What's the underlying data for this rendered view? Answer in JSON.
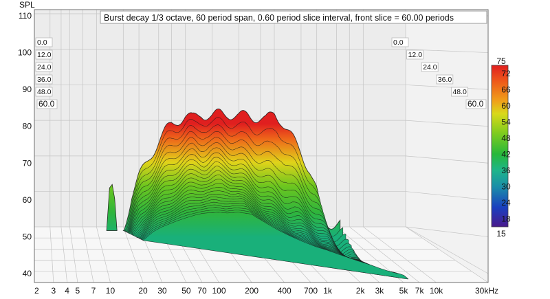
{
  "chart_data": {
    "type": "area",
    "title": "Burst decay 1/3 octave, 60 period span, 0.60 period slice interval,  front slice = 60.00 periods",
    "ylabel": "SPL",
    "ylim": [
      36,
      111
    ],
    "y_ticks": [
      "110",
      "100",
      "90",
      "80",
      "70",
      "60",
      "50",
      "40"
    ],
    "x_scale": "log",
    "xlim": [
      2,
      30000
    ],
    "x_ticks": [
      {
        "v": 2,
        "label": "2"
      },
      {
        "v": 3,
        "label": "3"
      },
      {
        "v": 4,
        "label": "4"
      },
      {
        "v": 5,
        "label": "5"
      },
      {
        "v": 7,
        "label": "7"
      },
      {
        "v": 10,
        "label": "10"
      },
      {
        "v": 20,
        "label": "20"
      },
      {
        "v": 30,
        "label": "30"
      },
      {
        "v": 50,
        "label": "50"
      },
      {
        "v": 70,
        "label": "70"
      },
      {
        "v": 100,
        "label": "100"
      },
      {
        "v": 200,
        "label": "200"
      },
      {
        "v": 400,
        "label": "400"
      },
      {
        "v": 700,
        "label": "700"
      },
      {
        "v": 1000,
        "label": "1k"
      },
      {
        "v": 2000,
        "label": "2k"
      },
      {
        "v": 3000,
        "label": "3k"
      },
      {
        "v": 5000,
        "label": "5k"
      },
      {
        "v": 7000,
        "label": "7k"
      },
      {
        "v": 10000,
        "label": "10k"
      },
      {
        "v": 30000,
        "label": "30kHz"
      }
    ],
    "z_label_unit": "periods",
    "z_ticks": [
      "0.0",
      "12.0",
      "24.0",
      "36.0",
      "48.0",
      "60.0"
    ],
    "slice_interval_periods": 0.6,
    "colorbar": {
      "min": 15,
      "max": 75,
      "ticks": [
        "75",
        "72",
        "66",
        "60",
        "54",
        "48",
        "42",
        "36",
        "30",
        "24",
        "18",
        "15"
      ],
      "colors": [
        "#4a1a8c",
        "#1a3fbf",
        "#1a8fa8",
        "#1fb58a",
        "#27b83a",
        "#7fcc1f",
        "#d9d91a",
        "#f0a01a",
        "#ee5a1a",
        "#e01f1f"
      ]
    },
    "series": [
      {
        "slice": "0.0",
        "x": [
          13,
          14,
          15,
          16,
          17,
          20,
          25,
          30,
          40,
          50,
          60,
          70,
          80,
          100,
          120,
          150,
          200,
          250,
          300,
          400,
          500,
          600,
          700,
          800,
          1000,
          1200,
          1500,
          2000,
          2500,
          3000,
          3500
        ],
        "y": [
          49,
          61,
          62,
          58,
          49,
          49,
          59,
          64,
          70,
          74,
          77,
          79,
          80,
          81,
          80.5,
          82,
          81,
          82,
          82,
          81,
          81.5,
          81,
          80.5,
          80,
          82,
          80,
          76,
          71,
          66,
          60,
          51
        ]
      },
      {
        "slice": "60.0",
        "x": [
          20,
          30,
          50,
          70,
          100,
          150,
          200,
          300,
          400,
          500,
          700,
          1000,
          1500,
          2000,
          2500,
          3000,
          3500,
          4000,
          4500,
          5000,
          5500
        ],
        "y": [
          49,
          49,
          49,
          48.9,
          48.7,
          48.4,
          48,
          47.4,
          46.9,
          46.3,
          45.5,
          44.6,
          43.5,
          42.6,
          41.9,
          41.2,
          40.7,
          40.2,
          39.9,
          39.5,
          38.5
        ]
      }
    ],
    "grid": true
  }
}
